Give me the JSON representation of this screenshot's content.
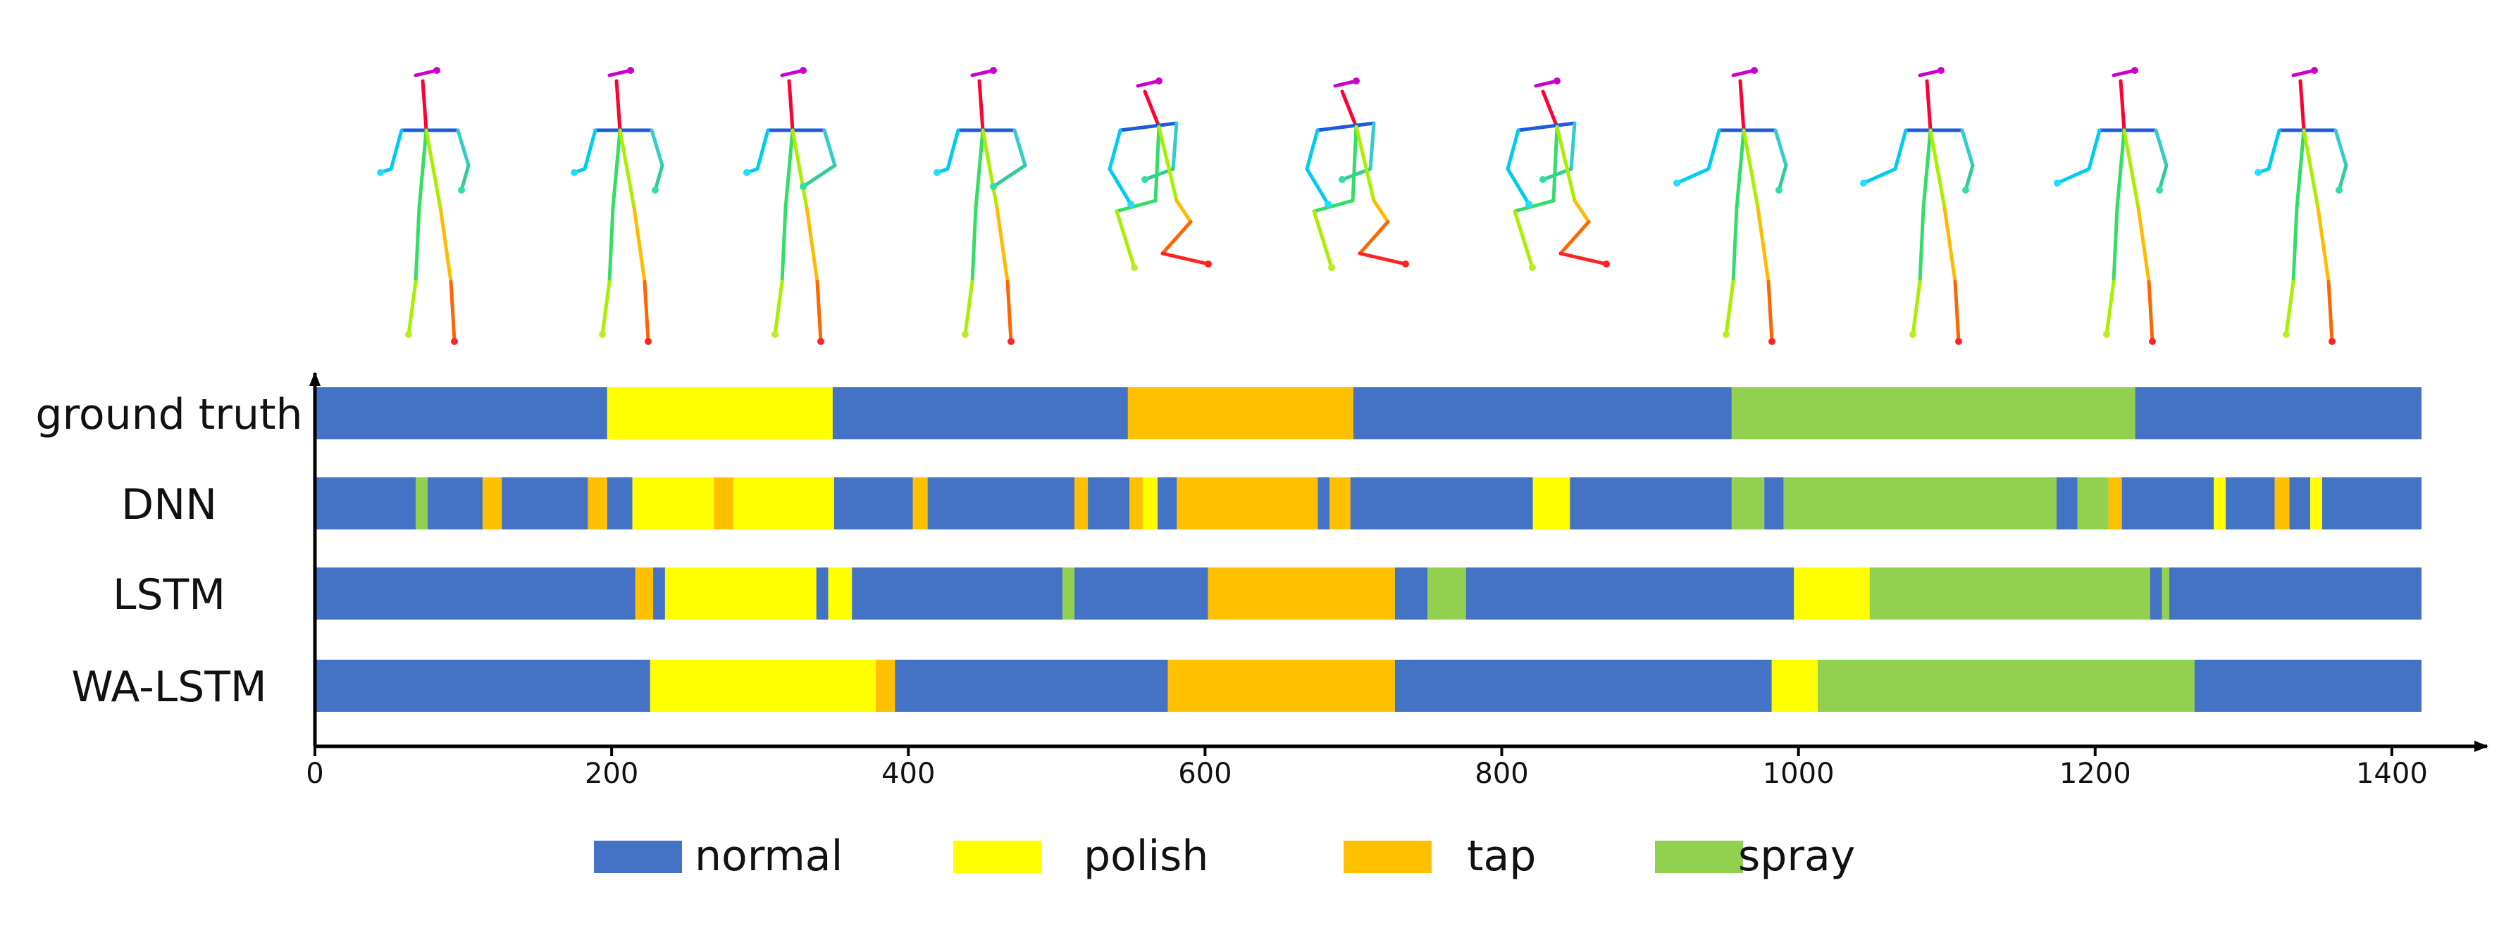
{
  "colors": {
    "normal": "#4472C4",
    "polish": "#FFFF00",
    "tap": "#FFC000",
    "spray": "#92D050",
    "axis": "#000000",
    "text": "#111111"
  },
  "pose_icons": [
    "stick-figure-standing",
    "stick-figure-standing",
    "stick-figure-polishing",
    "stick-figure-polishing",
    "stick-figure-crouching",
    "stick-figure-crouching",
    "stick-figure-crouching",
    "stick-figure-spraying",
    "stick-figure-spraying",
    "stick-figure-spraying",
    "stick-figure-standing"
  ],
  "chart_data": {
    "type": "bar",
    "subtype": "horizontal-segment-timeline",
    "title": "",
    "xlabel": "",
    "ylabel": "",
    "xlim": [
      0,
      1420
    ],
    "xticks": [
      0,
      200,
      400,
      600,
      800,
      1000,
      1200,
      1400
    ],
    "grid": false,
    "legend_position": "bottom",
    "legend": [
      {
        "key": "normal",
        "label": "normal"
      },
      {
        "key": "polish",
        "label": "polish"
      },
      {
        "key": "tap",
        "label": "tap"
      },
      {
        "key": "spray",
        "label": "spray"
      }
    ],
    "rows": [
      {
        "name": "ground truth",
        "segments": [
          {
            "start": 0,
            "end": 197,
            "label": "normal"
          },
          {
            "start": 197,
            "end": 349,
            "label": "polish"
          },
          {
            "start": 349,
            "end": 548,
            "label": "normal"
          },
          {
            "start": 548,
            "end": 700,
            "label": "tap"
          },
          {
            "start": 700,
            "end": 955,
            "label": "normal"
          },
          {
            "start": 955,
            "end": 1227,
            "label": "spray"
          },
          {
            "start": 1227,
            "end": 1420,
            "label": "normal"
          }
        ]
      },
      {
        "name": "DNN",
        "segments": [
          {
            "start": 0,
            "end": 68,
            "label": "normal"
          },
          {
            "start": 68,
            "end": 76,
            "label": "spray"
          },
          {
            "start": 76,
            "end": 113,
            "label": "normal"
          },
          {
            "start": 113,
            "end": 126,
            "label": "tap"
          },
          {
            "start": 126,
            "end": 184,
            "label": "normal"
          },
          {
            "start": 184,
            "end": 197,
            "label": "tap"
          },
          {
            "start": 197,
            "end": 214,
            "label": "normal"
          },
          {
            "start": 214,
            "end": 269,
            "label": "polish"
          },
          {
            "start": 269,
            "end": 282,
            "label": "tap"
          },
          {
            "start": 282,
            "end": 336,
            "label": "polish"
          },
          {
            "start": 336,
            "end": 350,
            "label": "polish"
          },
          {
            "start": 350,
            "end": 403,
            "label": "normal"
          },
          {
            "start": 403,
            "end": 413,
            "label": "tap"
          },
          {
            "start": 413,
            "end": 512,
            "label": "normal"
          },
          {
            "start": 512,
            "end": 521,
            "label": "tap"
          },
          {
            "start": 521,
            "end": 549,
            "label": "normal"
          },
          {
            "start": 549,
            "end": 558,
            "label": "tap"
          },
          {
            "start": 558,
            "end": 568,
            "label": "polish"
          },
          {
            "start": 568,
            "end": 581,
            "label": "normal"
          },
          {
            "start": 581,
            "end": 676,
            "label": "tap"
          },
          {
            "start": 676,
            "end": 684,
            "label": "normal"
          },
          {
            "start": 684,
            "end": 698,
            "label": "tap"
          },
          {
            "start": 698,
            "end": 821,
            "label": "normal"
          },
          {
            "start": 821,
            "end": 846,
            "label": "polish"
          },
          {
            "start": 846,
            "end": 955,
            "label": "normal"
          },
          {
            "start": 955,
            "end": 977,
            "label": "spray"
          },
          {
            "start": 977,
            "end": 990,
            "label": "normal"
          },
          {
            "start": 990,
            "end": 1174,
            "label": "spray"
          },
          {
            "start": 1174,
            "end": 1188,
            "label": "normal"
          },
          {
            "start": 1188,
            "end": 1209,
            "label": "spray"
          },
          {
            "start": 1209,
            "end": 1218,
            "label": "tap"
          },
          {
            "start": 1218,
            "end": 1280,
            "label": "normal"
          },
          {
            "start": 1280,
            "end": 1288,
            "label": "polish"
          },
          {
            "start": 1288,
            "end": 1321,
            "label": "normal"
          },
          {
            "start": 1321,
            "end": 1331,
            "label": "tap"
          },
          {
            "start": 1331,
            "end": 1345,
            "label": "normal"
          },
          {
            "start": 1345,
            "end": 1353,
            "label": "polish"
          },
          {
            "start": 1353,
            "end": 1420,
            "label": "normal"
          }
        ]
      },
      {
        "name": "LSTM",
        "segments": [
          {
            "start": 0,
            "end": 216,
            "label": "normal"
          },
          {
            "start": 216,
            "end": 228,
            "label": "tap"
          },
          {
            "start": 228,
            "end": 236,
            "label": "normal"
          },
          {
            "start": 236,
            "end": 338,
            "label": "polish"
          },
          {
            "start": 338,
            "end": 346,
            "label": "normal"
          },
          {
            "start": 346,
            "end": 362,
            "label": "polish"
          },
          {
            "start": 362,
            "end": 504,
            "label": "normal"
          },
          {
            "start": 504,
            "end": 512,
            "label": "spray"
          },
          {
            "start": 512,
            "end": 602,
            "label": "normal"
          },
          {
            "start": 602,
            "end": 728,
            "label": "tap"
          },
          {
            "start": 728,
            "end": 750,
            "label": "normal"
          },
          {
            "start": 750,
            "end": 776,
            "label": "spray"
          },
          {
            "start": 776,
            "end": 997,
            "label": "normal"
          },
          {
            "start": 997,
            "end": 1048,
            "label": "polish"
          },
          {
            "start": 1048,
            "end": 1237,
            "label": "spray"
          },
          {
            "start": 1237,
            "end": 1245,
            "label": "normal"
          },
          {
            "start": 1245,
            "end": 1250,
            "label": "spray"
          },
          {
            "start": 1250,
            "end": 1420,
            "label": "normal"
          }
        ]
      },
      {
        "name": "WA-LSTM",
        "segments": [
          {
            "start": 0,
            "end": 226,
            "label": "normal"
          },
          {
            "start": 226,
            "end": 378,
            "label": "polish"
          },
          {
            "start": 378,
            "end": 391,
            "label": "tap"
          },
          {
            "start": 391,
            "end": 575,
            "label": "normal"
          },
          {
            "start": 575,
            "end": 728,
            "label": "tap"
          },
          {
            "start": 728,
            "end": 982,
            "label": "normal"
          },
          {
            "start": 982,
            "end": 1013,
            "label": "polish"
          },
          {
            "start": 1013,
            "end": 1267,
            "label": "spray"
          },
          {
            "start": 1267,
            "end": 1420,
            "label": "normal"
          }
        ]
      }
    ]
  }
}
